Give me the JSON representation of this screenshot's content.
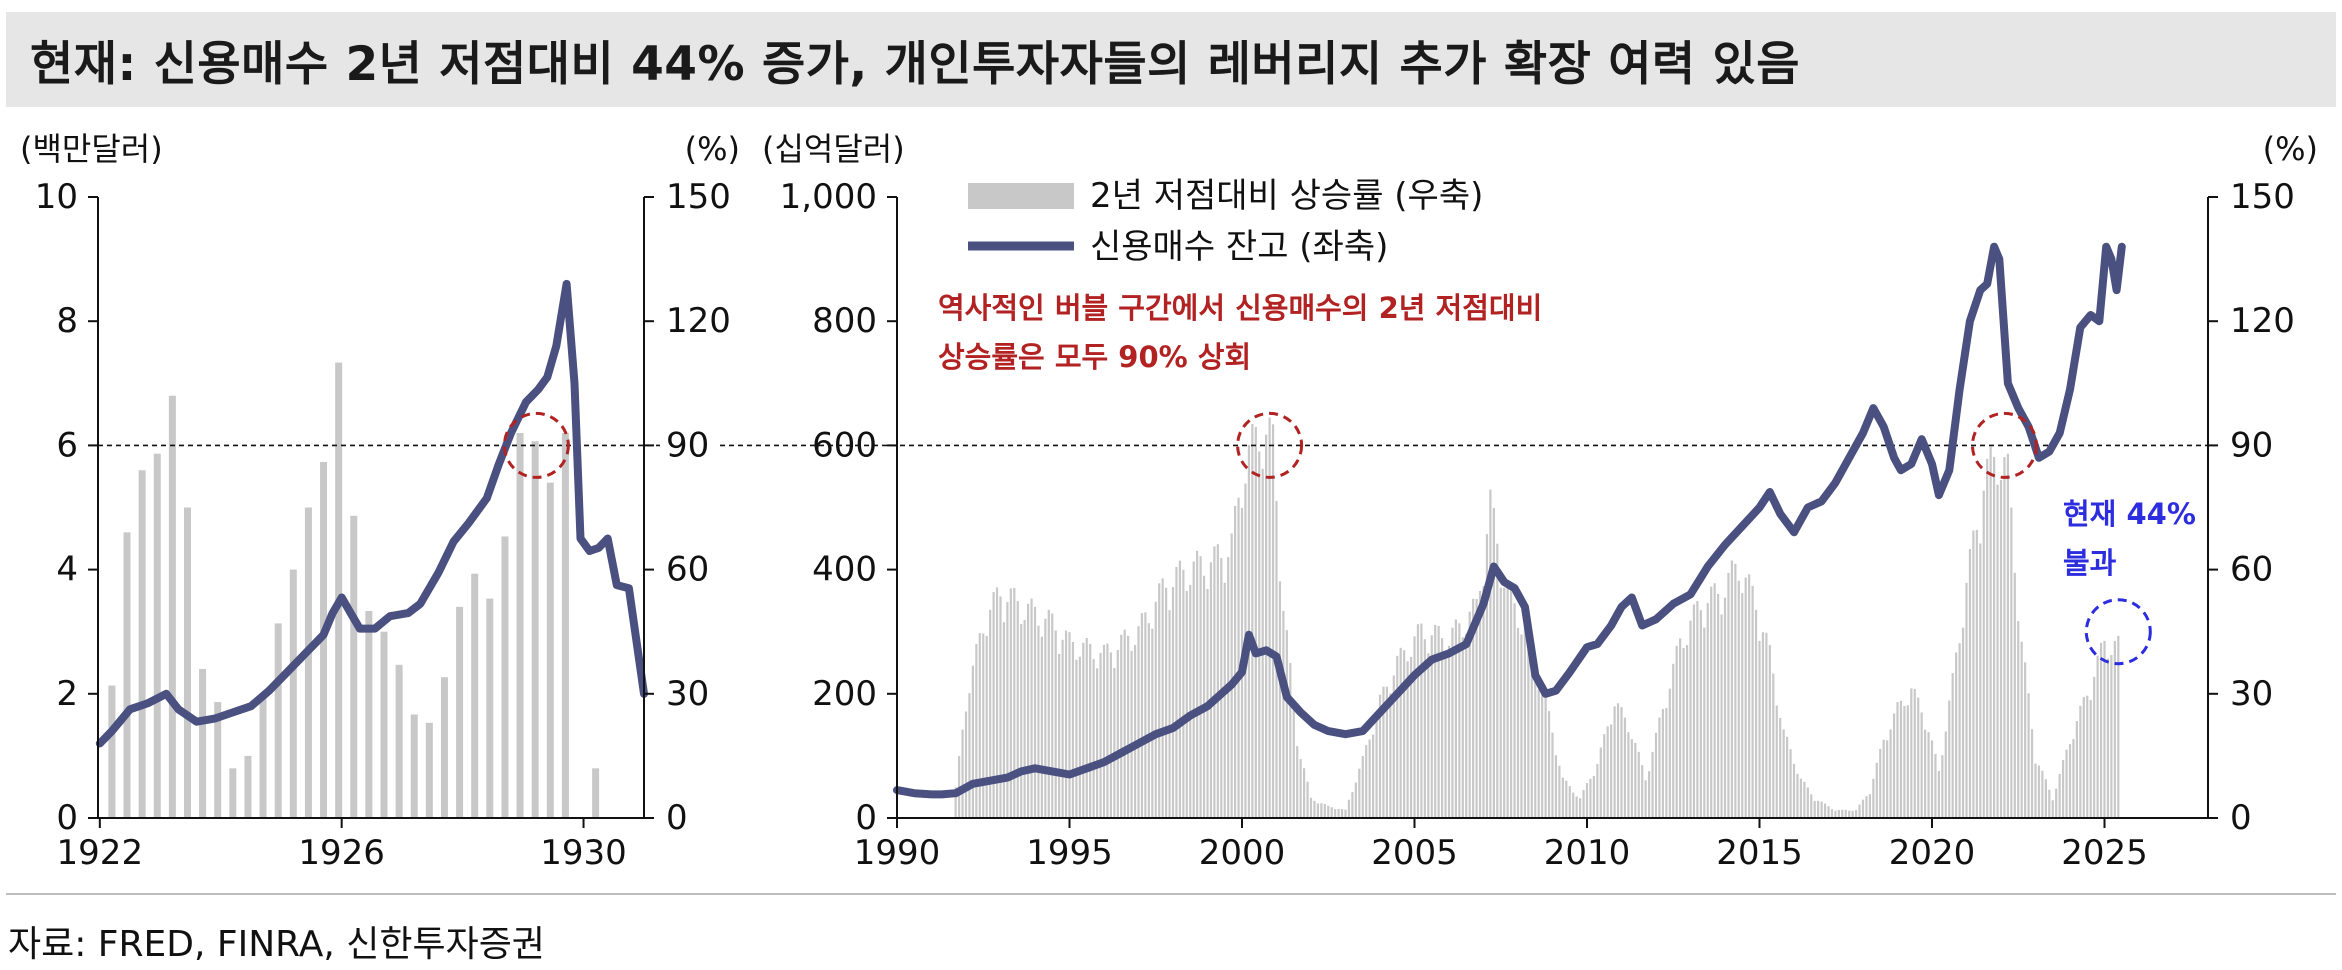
{
  "title": "현재: 신용매수 2년 저점대비 44% 증가, 개인투자자들의 레버리지 추가 확장 여력 있음",
  "source": "자료: FRED, FINRA, 신한투자증권",
  "colors": {
    "line": "#4a5080",
    "bar": "#c8c8c8",
    "ref": "#111111",
    "red": "#b22222",
    "blue": "#2d2de0"
  },
  "chart_data": [
    {
      "type": "bar+line",
      "unit_left": "(백만달러)",
      "unit_right": "(%)",
      "xlim": [
        1921.97,
        1931.0
      ],
      "ylim_left": [
        0,
        10
      ],
      "ylim_right": [
        0,
        150
      ],
      "yticks_left": [
        0,
        2,
        4,
        6,
        8,
        10
      ],
      "yticks_right": [
        0,
        30,
        60,
        90,
        120,
        150
      ],
      "xticks": [
        1922,
        1926,
        1930
      ],
      "reference_line": 90,
      "bar_series": {
        "name": "2년 저점대비 상승률 (우축)",
        "x": [
          1922.2,
          1922.45,
          1922.7,
          1922.95,
          1923.2,
          1923.45,
          1923.7,
          1923.95,
          1924.2,
          1924.45,
          1924.7,
          1924.95,
          1925.2,
          1925.45,
          1925.7,
          1925.95,
          1926.2,
          1926.45,
          1926.7,
          1926.95,
          1927.2,
          1927.45,
          1927.7,
          1927.95,
          1928.2,
          1928.45,
          1928.7,
          1928.95,
          1929.2,
          1929.45,
          1929.7,
          1929.95,
          1930.2
        ],
        "values": [
          32,
          69,
          84,
          88,
          102,
          75,
          36,
          28,
          12,
          15,
          30,
          47,
          60,
          75,
          86,
          110,
          73,
          50,
          45,
          37,
          25,
          23,
          34,
          51,
          59,
          53,
          68,
          93,
          91,
          81,
          93,
          0,
          12
        ]
      },
      "line_series": {
        "name": "신용매수 잔고 (좌축)",
        "x": [
          1922.0,
          1922.2,
          1922.5,
          1922.8,
          1923.1,
          1923.3,
          1923.6,
          1923.9,
          1924.2,
          1924.5,
          1924.8,
          1925.1,
          1925.4,
          1925.7,
          1925.85,
          1926.0,
          1926.15,
          1926.3,
          1926.55,
          1926.8,
          1927.1,
          1927.3,
          1927.6,
          1927.85,
          1928.1,
          1928.4,
          1928.6,
          1928.8,
          1929.05,
          1929.25,
          1929.4,
          1929.55,
          1929.72,
          1929.85,
          1929.95,
          1930.1,
          1930.25,
          1930.4,
          1930.55,
          1930.75,
          1931.0
        ],
        "values": [
          1.2,
          1.4,
          1.75,
          1.85,
          2.0,
          1.75,
          1.55,
          1.6,
          1.7,
          1.8,
          2.05,
          2.35,
          2.65,
          2.95,
          3.3,
          3.55,
          3.3,
          3.05,
          3.05,
          3.25,
          3.3,
          3.45,
          3.95,
          4.45,
          4.75,
          5.15,
          5.7,
          6.2,
          6.7,
          6.9,
          7.1,
          7.6,
          8.6,
          7.0,
          4.5,
          4.3,
          4.35,
          4.5,
          3.75,
          3.7,
          2.0
        ]
      }
    },
    {
      "type": "bar+line",
      "unit_left": "(십억달러)",
      "unit_right": "(%)",
      "xlim": [
        1990.0,
        2028.0
      ],
      "ylim_left": [
        0,
        1000
      ],
      "ylim_right": [
        0,
        150
      ],
      "yticks_left": [
        0,
        200,
        400,
        600,
        800,
        1000
      ],
      "yticks_left_labels": [
        "0",
        "200",
        "400",
        "600",
        "800",
        "1,000"
      ],
      "yticks_right": [
        0,
        30,
        60,
        90,
        120,
        150
      ],
      "xticks": [
        1990,
        1995,
        2000,
        2005,
        2010,
        2015,
        2020,
        2025
      ],
      "reference_line": 90,
      "bar_series": {
        "name": "2년 저점대비 상승률 (우축)",
        "anchors_x": [
          1990.0,
          1991.6,
          1992.0,
          1992.5,
          1993.0,
          1993.7,
          1994.5,
          1995.0,
          1996.0,
          1997.0,
          1997.8,
          1998.5,
          1999.2,
          1999.7,
          2000.1,
          2000.6,
          2000.9,
          2001.2,
          2001.6,
          2002.0,
          2002.5,
          2003.0,
          2003.5,
          2004.0,
          2004.5,
          2005.2,
          2006.0,
          2006.8,
          2007.2,
          2007.7,
          2008.3,
          2008.8,
          2009.3,
          2009.8,
          2010.3,
          2010.8,
          2011.3,
          2011.7,
          2012.2,
          2012.7,
          2013.3,
          2013.9,
          2014.4,
          2014.9,
          2015.3,
          2015.7,
          2016.2,
          2016.6,
          2017.2,
          2017.8,
          2018.2,
          2018.6,
          2019.0,
          2019.4,
          2019.8,
          2020.2,
          2020.6,
          2021.0,
          2021.5,
          2021.9,
          2022.2,
          2022.6,
          2023.0,
          2023.5,
          2024.0,
          2024.5,
          2025.0,
          2025.4
        ],
        "anchors_y": [
          0,
          0,
          30,
          50,
          58,
          54,
          50,
          45,
          42,
          48,
          60,
          64,
          66,
          70,
          92,
          100,
          96,
          55,
          20,
          5,
          3,
          2,
          15,
          30,
          40,
          48,
          46,
          54,
          80,
          57,
          48,
          30,
          10,
          5,
          14,
          30,
          22,
          10,
          28,
          45,
          55,
          58,
          65,
          55,
          42,
          22,
          10,
          5,
          2,
          2,
          7,
          20,
          28,
          33,
          26,
          12,
          35,
          60,
          86,
          94,
          88,
          45,
          16,
          5,
          20,
          32,
          45,
          44
        ],
        "step": 0.1
      },
      "line_series": {
        "name": "신용매수 잔고 (좌축)",
        "x": [
          1990.0,
          1990.5,
          1991.0,
          1991.3,
          1991.7,
          1992.2,
          1992.7,
          1993.2,
          1993.6,
          1994.0,
          1994.5,
          1995.0,
          1995.5,
          1996.0,
          1996.5,
          1997.0,
          1997.5,
          1998.0,
          1998.5,
          1999.0,
          1999.4,
          1999.7,
          2000.0,
          2000.2,
          2000.4,
          2000.7,
          2001.0,
          2001.3,
          2001.7,
          2002.1,
          2002.5,
          2003.0,
          2003.5,
          2004.0,
          2004.5,
          2005.0,
          2005.5,
          2006.0,
          2006.5,
          2007.0,
          2007.3,
          2007.6,
          2007.9,
          2008.2,
          2008.5,
          2008.8,
          2009.1,
          2009.5,
          2010.0,
          2010.3,
          2010.7,
          2011.0,
          2011.3,
          2011.6,
          2012.0,
          2012.5,
          2013.0,
          2013.5,
          2014.0,
          2014.5,
          2015.0,
          2015.3,
          2015.6,
          2016.0,
          2016.4,
          2016.8,
          2017.2,
          2017.6,
          2018.0,
          2018.3,
          2018.6,
          2018.9,
          2019.1,
          2019.4,
          2019.7,
          2020.0,
          2020.2,
          2020.5,
          2020.8,
          2021.1,
          2021.4,
          2021.6,
          2021.8,
          2021.95,
          2022.2,
          2022.5,
          2022.8,
          2023.1,
          2023.4,
          2023.7,
          2024.0,
          2024.3,
          2024.6,
          2024.85,
          2025.05,
          2025.2,
          2025.35,
          2025.5
        ],
        "values": [
          45,
          40,
          38,
          38,
          40,
          55,
          60,
          65,
          75,
          80,
          75,
          70,
          80,
          90,
          105,
          120,
          135,
          145,
          165,
          180,
          200,
          215,
          235,
          295,
          265,
          270,
          260,
          195,
          170,
          150,
          140,
          135,
          140,
          170,
          200,
          230,
          255,
          265,
          280,
          345,
          405,
          380,
          370,
          340,
          230,
          200,
          205,
          235,
          275,
          280,
          310,
          340,
          355,
          310,
          320,
          345,
          360,
          405,
          440,
          470,
          500,
          525,
          490,
          460,
          500,
          510,
          540,
          580,
          620,
          660,
          630,
          580,
          560,
          570,
          610,
          570,
          520,
          560,
          690,
          800,
          850,
          860,
          920,
          900,
          700,
          660,
          630,
          580,
          590,
          620,
          690,
          790,
          810,
          800,
          920,
          900,
          850,
          920
        ]
      },
      "annotations": {
        "bubble_note_line1": "역사적인 버블 구간에서 신용매수의 2년 저점대비",
        "bubble_note_line2": "상승률은 모두 90% 상회",
        "current_note_line1": "현재 44%",
        "current_note_line2": "불과"
      }
    }
  ]
}
